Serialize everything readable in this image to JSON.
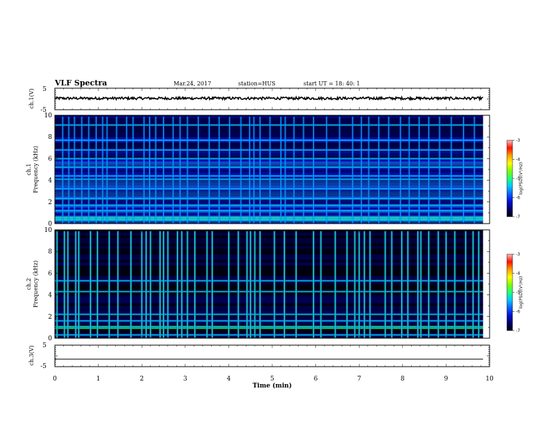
{
  "header": {
    "title": "VLF Spectra",
    "date": "Mar.24, 2017",
    "station": "station=HUS",
    "start": "start  UT =   18: 40: 1"
  },
  "chart_data": [
    {
      "name": "ch1-waveform",
      "type": "line",
      "ylabel": "ch.1(V)",
      "ylim": [
        -5,
        5
      ],
      "ytick_labels": [
        "5",
        "-5"
      ],
      "xlim": [
        0,
        10
      ],
      "signal": {
        "mean": 0.3,
        "noise_amplitude": 0.6,
        "x_end": 9.85
      }
    },
    {
      "name": "ch1-spectrogram",
      "type": "heatmap",
      "ylabel": "ch.1",
      "ylabel2": "Frequency (kHz)",
      "ylim": [
        0,
        10
      ],
      "ytick_labels": [
        "0",
        "2",
        "4",
        "6",
        "8",
        "10"
      ],
      "xlim": [
        0,
        10
      ],
      "x_end": 9.85,
      "colorbar": {
        "label": "log(PSD)(V²/Hz)",
        "range": [
          -7,
          -3
        ],
        "tick_labels": [
          "-3",
          "-4",
          "-5",
          "-6",
          "-7"
        ]
      },
      "bright_bands_khz": [
        0.3,
        0.5,
        1.2,
        1.7,
        2.3,
        3.2,
        4.1,
        4.4,
        5.2,
        6.0,
        6.8,
        7.7,
        9.1
      ],
      "green_lines_khz": [
        0.4,
        0.6
      ],
      "vertical_events_min": [
        0.18,
        0.32,
        0.45,
        0.62,
        0.78,
        0.95,
        1.1,
        1.2,
        1.42,
        1.65,
        1.8,
        2.05,
        2.18,
        2.32,
        2.5,
        2.72,
        2.88,
        3.05,
        3.3,
        3.55,
        3.78,
        4.02,
        4.28,
        4.48,
        4.58,
        4.72,
        4.95,
        5.2,
        5.3,
        5.5,
        5.72,
        5.95,
        6.25,
        6.55,
        6.85,
        7.05,
        7.22,
        7.45,
        7.68,
        7.95,
        8.15,
        8.38,
        8.6,
        8.85,
        9.12,
        9.4,
        9.65
      ],
      "event_intensity": "moderate"
    },
    {
      "name": "ch2-spectrogram",
      "type": "heatmap",
      "ylabel": "ch.2",
      "ylabel2": "Frequency (kHz)",
      "ylim": [
        0,
        10
      ],
      "ytick_labels": [
        "0",
        "2",
        "4",
        "6",
        "8",
        "10"
      ],
      "xlim": [
        0,
        10
      ],
      "x_end": 9.85,
      "colorbar": {
        "label": "log(PSD)(V²/Hz)",
        "range": [
          -7,
          -3
        ],
        "tick_labels": [
          "-3",
          "-4",
          "-5",
          "-6",
          "-7"
        ]
      },
      "bright_bands_khz": [
        0.3,
        1.0,
        1.6,
        2.2,
        4.3,
        5.3
      ],
      "green_lines_khz": [
        0.9,
        1.1
      ],
      "vertical_events_min": [
        0.05,
        0.22,
        0.3,
        0.48,
        0.55,
        0.82,
        0.98,
        1.25,
        1.45,
        1.75,
        2.0,
        2.1,
        2.2,
        2.42,
        2.5,
        2.6,
        2.82,
        2.92,
        3.05,
        3.22,
        3.5,
        3.62,
        4.0,
        4.22,
        4.42,
        4.5,
        4.6,
        4.72,
        5.05,
        5.28,
        5.55,
        5.95,
        6.12,
        6.45,
        6.72,
        6.9,
        7.0,
        7.12,
        7.25,
        7.6,
        7.75,
        7.98,
        8.12,
        8.35,
        8.42,
        8.6,
        8.82,
        9.0,
        9.2,
        9.45,
        9.62,
        9.75
      ],
      "event_intensity": "strong"
    },
    {
      "name": "ch3-waveform",
      "type": "line",
      "ylabel": "ch.3(V)",
      "ylim": [
        -5,
        5
      ],
      "ytick_labels": [
        "5",
        "-5"
      ],
      "xlim": [
        0,
        10
      ],
      "signal": {
        "mean": -1.5,
        "noise_amplitude": 0.0,
        "x_end": 9.85
      }
    }
  ],
  "x_axis": {
    "label": "Time (min)",
    "tick_labels": [
      "0",
      "1",
      "2",
      "3",
      "4",
      "5",
      "6",
      "7",
      "8",
      "9",
      "10"
    ]
  },
  "colors": {
    "colormap": [
      "#000010",
      "#00006a",
      "#0010d8",
      "#1060ff",
      "#00c8ff",
      "#20ff80",
      "#80ff00",
      "#ffff00",
      "#ffa000",
      "#ff1000",
      "#ffc0c0"
    ],
    "waveform": "#000000"
  }
}
